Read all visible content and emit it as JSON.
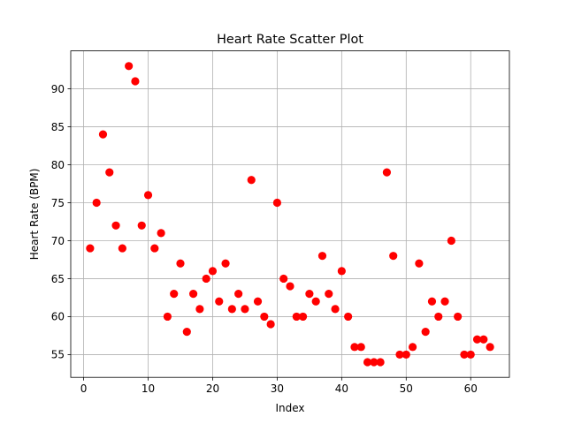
{
  "chart_data": {
    "type": "scatter",
    "title": "Heart Rate Scatter Plot",
    "xlabel": "Index",
    "ylabel": "Heart Rate (BPM)",
    "xlim": [
      -2,
      66
    ],
    "ylim": [
      52,
      95
    ],
    "xticks": [
      0,
      10,
      20,
      30,
      40,
      50,
      60
    ],
    "yticks": [
      55,
      60,
      65,
      70,
      75,
      80,
      85,
      90
    ],
    "grid": true,
    "marker_color": "#ff0000",
    "series": [
      {
        "x": [
          1,
          2,
          3,
          4,
          5,
          6,
          7,
          8,
          9,
          10,
          11,
          12,
          13,
          14,
          15,
          16,
          17,
          18,
          19,
          20,
          21,
          22,
          23,
          24,
          25,
          26,
          27,
          28,
          29,
          30,
          31,
          32,
          33,
          34,
          35,
          36,
          37,
          38,
          39,
          40,
          41,
          42,
          43,
          44,
          45,
          46,
          47,
          48,
          49,
          50,
          51,
          52,
          53,
          54,
          55,
          56,
          57,
          58,
          59,
          60,
          61,
          62,
          63
        ],
        "y": [
          69,
          75,
          84,
          79,
          72,
          69,
          93,
          91,
          72,
          76,
          69,
          71,
          60,
          63,
          67,
          58,
          63,
          61,
          65,
          66,
          62,
          67,
          61,
          63,
          61,
          78,
          62,
          60,
          59,
          75,
          65,
          64,
          60,
          60,
          63,
          62,
          68,
          63,
          61,
          66,
          60,
          56,
          56,
          54,
          54,
          54,
          79,
          68,
          55,
          55,
          56,
          67,
          58,
          62,
          60,
          62,
          70,
          60,
          55,
          55,
          57,
          57,
          56
        ]
      }
    ]
  }
}
